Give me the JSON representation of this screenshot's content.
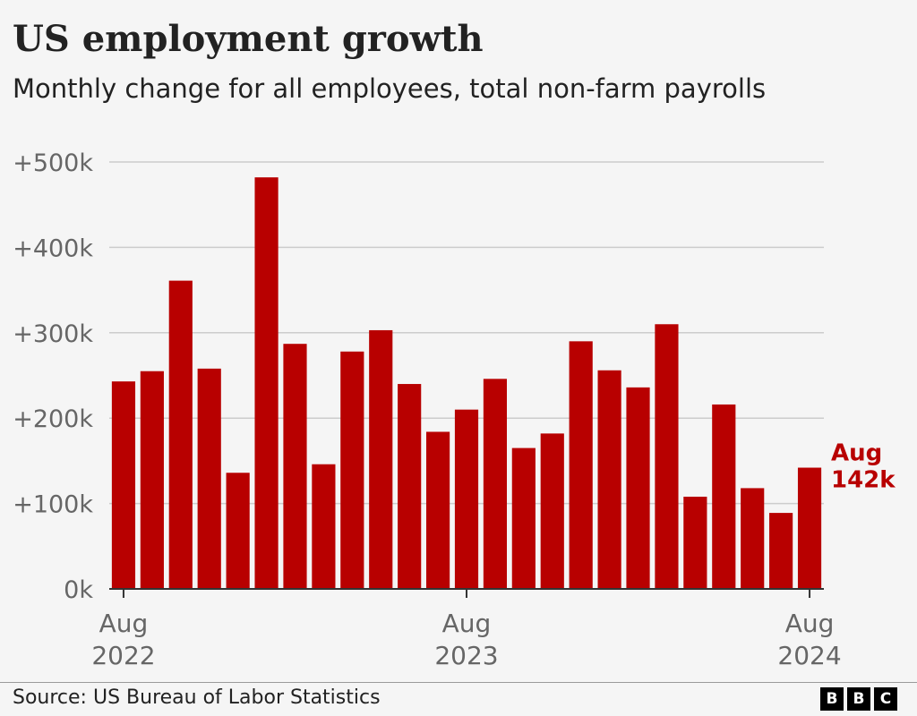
{
  "header": {
    "title": "US employment growth",
    "subtitle": "Monthly change for all employees, total non-farm payrolls"
  },
  "footer": {
    "source": "Source: US Bureau of Labor Statistics",
    "logo": [
      "B",
      "B",
      "C"
    ]
  },
  "colors": {
    "bar": "#b80000",
    "annotation": "#b80000",
    "grid": "#cccccc",
    "tick_text": "#666666",
    "background": "#f5f5f5"
  },
  "chart_data": {
    "type": "bar",
    "title": "US employment growth",
    "subtitle": "Monthly change for all employees, total non-farm payrolls",
    "categories": [
      "Aug 2022",
      "Sep 2022",
      "Oct 2022",
      "Nov 2022",
      "Dec 2022",
      "Jan 2023",
      "Feb 2023",
      "Mar 2023",
      "Apr 2023",
      "May 2023",
      "Jun 2023",
      "Jul 2023",
      "Aug 2023",
      "Sep 2023",
      "Oct 2023",
      "Nov 2023",
      "Dec 2023",
      "Jan 2024",
      "Feb 2024",
      "Mar 2024",
      "Apr 2024",
      "May 2024",
      "Jun 2024",
      "Jul 2024",
      "Aug 2024"
    ],
    "values": [
      243,
      255,
      361,
      258,
      136,
      482,
      287,
      146,
      278,
      303,
      240,
      184,
      210,
      246,
      165,
      182,
      290,
      256,
      236,
      310,
      108,
      216,
      118,
      89,
      142
    ],
    "unit": "k",
    "ylim": [
      0,
      500
    ],
    "yticks": [
      {
        "value": 0,
        "label": "0k"
      },
      {
        "value": 100,
        "label": "+100k"
      },
      {
        "value": 200,
        "label": "+200k"
      },
      {
        "value": 300,
        "label": "+300k"
      },
      {
        "value": 400,
        "label": "+400k"
      },
      {
        "value": 500,
        "label": "+500k"
      }
    ],
    "xticks": [
      {
        "index": 0,
        "label": [
          "Aug",
          "2022"
        ]
      },
      {
        "index": 12,
        "label": [
          "Aug",
          "2023"
        ]
      },
      {
        "index": 24,
        "label": [
          "Aug",
          "2024"
        ]
      }
    ],
    "annotation": {
      "index": 24,
      "lines": [
        "Aug",
        "142k"
      ]
    },
    "grid": true,
    "legend": "none"
  }
}
